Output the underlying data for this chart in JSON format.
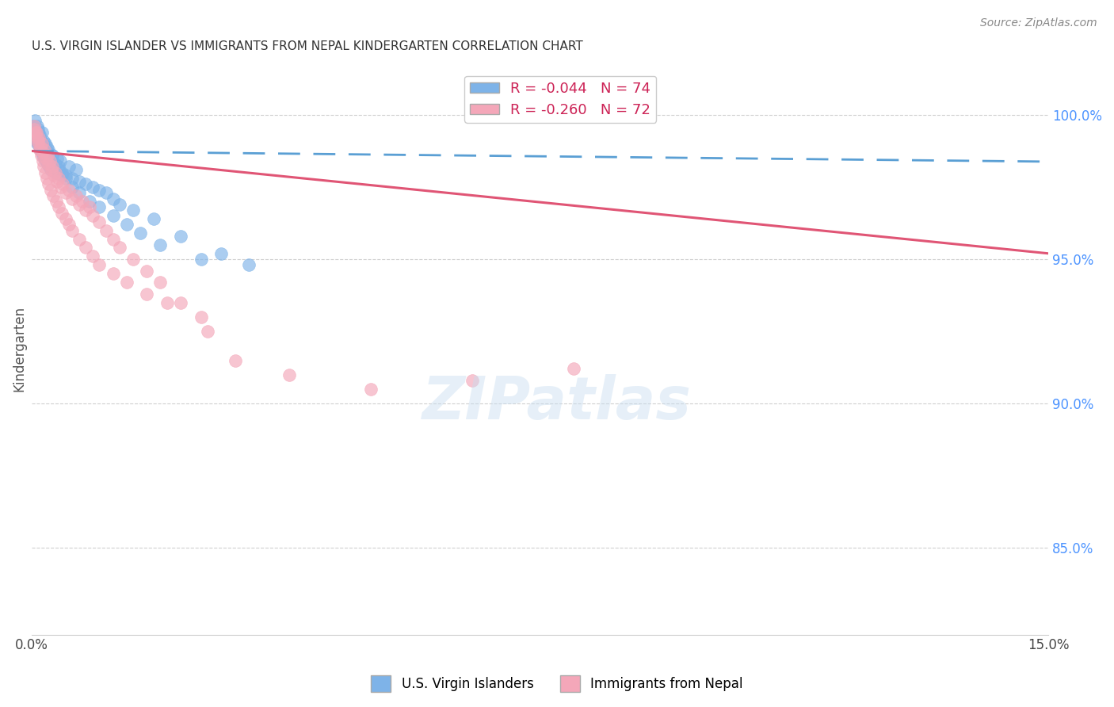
{
  "title": "U.S. VIRGIN ISLANDER VS IMMIGRANTS FROM NEPAL KINDERGARTEN CORRELATION CHART",
  "source": "Source: ZipAtlas.com",
  "ylabel": "Kindergarten",
  "x_range": [
    0.0,
    15.0
  ],
  "y_range": [
    82.0,
    101.8
  ],
  "y_ticks": [
    85.0,
    90.0,
    95.0,
    100.0
  ],
  "legend_label1": "U.S. Virgin Islanders",
  "legend_label2": "Immigrants from Nepal",
  "R1": -0.044,
  "N1": 74,
  "R2": -0.26,
  "N2": 72,
  "color1": "#7eb3e8",
  "color2": "#f4a7b9",
  "trendline1_color": "#5a9fd4",
  "trendline2_color": "#e05575",
  "trend1_y0": 98.75,
  "trend1_y1": 98.38,
  "trend2_y0": 98.75,
  "trend2_y1": 95.2,
  "scatter1_x": [
    0.02,
    0.03,
    0.04,
    0.05,
    0.06,
    0.07,
    0.08,
    0.09,
    0.1,
    0.11,
    0.12,
    0.13,
    0.14,
    0.15,
    0.16,
    0.17,
    0.18,
    0.19,
    0.2,
    0.21,
    0.22,
    0.23,
    0.24,
    0.25,
    0.26,
    0.27,
    0.28,
    0.3,
    0.32,
    0.35,
    0.38,
    0.4,
    0.42,
    0.45,
    0.5,
    0.55,
    0.6,
    0.65,
    0.7,
    0.8,
    0.9,
    1.0,
    1.1,
    1.2,
    1.3,
    1.5,
    1.8,
    2.2,
    2.8,
    3.2,
    0.05,
    0.08,
    0.1,
    0.12,
    0.15,
    0.18,
    0.2,
    0.22,
    0.25,
    0.28,
    0.3,
    0.35,
    0.4,
    0.45,
    0.5,
    0.6,
    0.7,
    0.85,
    1.0,
    1.2,
    1.4,
    1.6,
    1.9,
    2.5
  ],
  "scatter1_y": [
    99.6,
    99.4,
    99.2,
    99.5,
    99.3,
    99.1,
    99.0,
    99.4,
    99.2,
    99.3,
    98.9,
    98.8,
    99.1,
    98.7,
    98.6,
    99.0,
    98.8,
    98.5,
    98.7,
    98.4,
    98.6,
    98.3,
    98.5,
    98.8,
    98.2,
    98.4,
    98.1,
    98.6,
    98.3,
    98.0,
    98.5,
    98.2,
    98.4,
    98.0,
    97.9,
    98.2,
    97.8,
    98.1,
    97.7,
    97.6,
    97.5,
    97.4,
    97.3,
    97.1,
    96.9,
    96.7,
    96.4,
    95.8,
    95.2,
    94.8,
    99.8,
    99.6,
    99.5,
    99.3,
    99.4,
    99.1,
    99.0,
    98.9,
    98.7,
    98.5,
    98.6,
    98.3,
    98.1,
    97.9,
    97.8,
    97.5,
    97.3,
    97.0,
    96.8,
    96.5,
    96.2,
    95.9,
    95.5,
    95.0
  ],
  "scatter2_x": [
    0.03,
    0.05,
    0.07,
    0.09,
    0.11,
    0.13,
    0.15,
    0.17,
    0.19,
    0.21,
    0.23,
    0.25,
    0.27,
    0.29,
    0.31,
    0.33,
    0.35,
    0.38,
    0.4,
    0.43,
    0.46,
    0.5,
    0.55,
    0.6,
    0.65,
    0.7,
    0.75,
    0.8,
    0.85,
    0.9,
    1.0,
    1.1,
    1.2,
    1.3,
    1.5,
    1.7,
    1.9,
    2.2,
    2.6,
    3.0,
    3.8,
    5.0,
    6.5,
    8.0,
    0.04,
    0.06,
    0.08,
    0.1,
    0.12,
    0.14,
    0.16,
    0.18,
    0.2,
    0.22,
    0.25,
    0.28,
    0.32,
    0.36,
    0.4,
    0.45,
    0.5,
    0.55,
    0.6,
    0.7,
    0.8,
    0.9,
    1.0,
    1.2,
    1.4,
    1.7,
    2.0,
    2.5
  ],
  "scatter2_y": [
    99.5,
    99.3,
    99.4,
    99.1,
    99.2,
    98.9,
    99.0,
    98.7,
    98.8,
    98.5,
    98.6,
    98.3,
    98.4,
    98.1,
    98.2,
    97.9,
    98.0,
    97.7,
    97.8,
    97.5,
    97.6,
    97.3,
    97.4,
    97.1,
    97.2,
    96.9,
    97.0,
    96.7,
    96.8,
    96.5,
    96.3,
    96.0,
    95.7,
    95.4,
    95.0,
    94.6,
    94.2,
    93.5,
    92.5,
    91.5,
    91.0,
    90.5,
    90.8,
    91.2,
    99.6,
    99.4,
    99.2,
    99.0,
    98.8,
    98.6,
    98.4,
    98.2,
    98.0,
    97.8,
    97.6,
    97.4,
    97.2,
    97.0,
    96.8,
    96.6,
    96.4,
    96.2,
    96.0,
    95.7,
    95.4,
    95.1,
    94.8,
    94.5,
    94.2,
    93.8,
    93.5,
    93.0
  ]
}
